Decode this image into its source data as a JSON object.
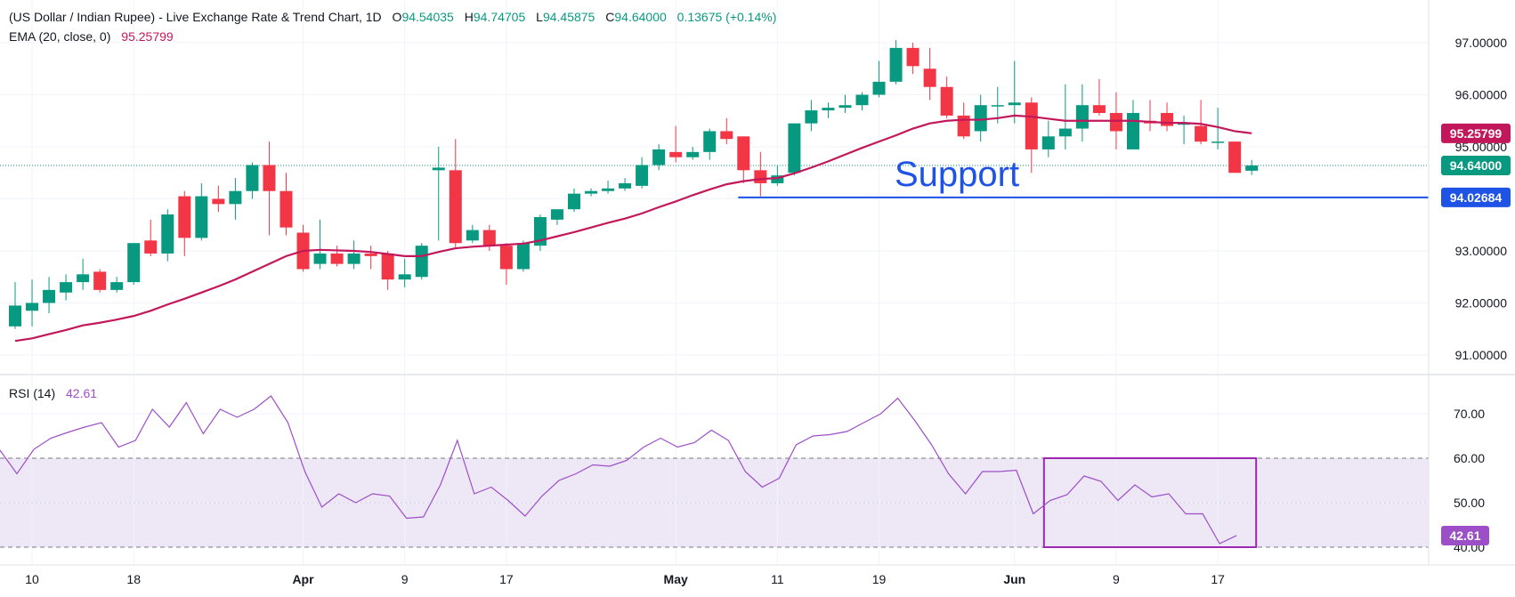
{
  "legend": {
    "title": "(US Dollar / Indian Rupee) - Live Exchange Rate & Trend Chart, 1D",
    "open_label": "O",
    "open": "94.54035",
    "high_label": "H",
    "high": "94.74705",
    "low_label": "L",
    "low": "94.45875",
    "close_label": "C",
    "close": "94.64000",
    "change": "0.13675 (+0.14%)",
    "ema_label": "EMA (20, close, 0)",
    "ema_value": "95.25799",
    "rsi_label": "RSI (14)",
    "rsi_value": "42.61"
  },
  "annotation": {
    "support_text": "Support"
  },
  "price_tags": {
    "ema": "95.25799",
    "last": "94.64000",
    "support": "94.02684",
    "rsi": "42.61"
  },
  "colors": {
    "up": "#089981",
    "down": "#f23645",
    "ema": "#c2185b",
    "rsi": "#9c4fc7",
    "support": "#1e53e5",
    "box": "#9c27b0",
    "band": "#ede7f6"
  },
  "chart_data": [
    {
      "type": "candlestick",
      "title": "(US Dollar / Indian Rupee) - Live Exchange Rate & Trend Chart, 1D",
      "y_ticks": [
        91,
        92,
        93,
        94,
        95,
        96,
        97
      ],
      "y_tick_labels": [
        "91.00000",
        "92.00000",
        "93.00000",
        "94.00000",
        "95.00000",
        "96.00000",
        "97.00000"
      ],
      "ylim": [
        90.55,
        97.1
      ],
      "x_tick_labels": [
        "10",
        "18",
        "Apr",
        "9",
        "17",
        "May",
        "11",
        "19",
        "Jun",
        "9",
        "17"
      ],
      "x_tick_index": [
        1,
        7,
        17,
        23,
        29,
        39,
        45,
        51,
        59,
        65,
        71
      ],
      "candles": [
        {
          "o": 91.55,
          "h": 92.4,
          "l": 91.5,
          "c": 91.95
        },
        {
          "o": 91.85,
          "h": 92.45,
          "l": 91.55,
          "c": 92.0
        },
        {
          "o": 92.0,
          "h": 92.5,
          "l": 91.8,
          "c": 92.25
        },
        {
          "o": 92.2,
          "h": 92.55,
          "l": 92.05,
          "c": 92.4
        },
        {
          "o": 92.4,
          "h": 92.85,
          "l": 92.25,
          "c": 92.55
        },
        {
          "o": 92.6,
          "h": 92.65,
          "l": 92.2,
          "c": 92.25
        },
        {
          "o": 92.25,
          "h": 92.5,
          "l": 92.2,
          "c": 92.4
        },
        {
          "o": 92.4,
          "h": 93.15,
          "l": 92.35,
          "c": 93.15
        },
        {
          "o": 93.2,
          "h": 93.6,
          "l": 92.9,
          "c": 92.95
        },
        {
          "o": 92.95,
          "h": 93.8,
          "l": 92.8,
          "c": 93.7
        },
        {
          "o": 94.05,
          "h": 94.15,
          "l": 92.9,
          "c": 93.25
        },
        {
          "o": 93.25,
          "h": 94.3,
          "l": 93.2,
          "c": 94.05
        },
        {
          "o": 94.0,
          "h": 94.25,
          "l": 93.75,
          "c": 93.9
        },
        {
          "o": 93.9,
          "h": 94.4,
          "l": 93.6,
          "c": 94.15
        },
        {
          "o": 94.15,
          "h": 94.7,
          "l": 94.0,
          "c": 94.65
        },
        {
          "o": 94.65,
          "h": 95.1,
          "l": 93.3,
          "c": 94.15
        },
        {
          "o": 94.15,
          "h": 94.5,
          "l": 93.3,
          "c": 93.45
        },
        {
          "o": 93.35,
          "h": 93.5,
          "l": 92.6,
          "c": 92.65
        },
        {
          "o": 92.75,
          "h": 93.6,
          "l": 92.65,
          "c": 92.95
        },
        {
          "o": 92.95,
          "h": 93.1,
          "l": 92.7,
          "c": 92.75
        },
        {
          "o": 92.75,
          "h": 93.2,
          "l": 92.65,
          "c": 92.95
        },
        {
          "o": 92.95,
          "h": 93.1,
          "l": 92.65,
          "c": 92.9
        },
        {
          "o": 92.95,
          "h": 93.0,
          "l": 92.25,
          "c": 92.45
        },
        {
          "o": 92.45,
          "h": 92.85,
          "l": 92.3,
          "c": 92.55
        },
        {
          "o": 92.5,
          "h": 93.15,
          "l": 92.45,
          "c": 93.1
        },
        {
          "o": 94.55,
          "h": 95.0,
          "l": 93.2,
          "c": 94.6
        },
        {
          "o": 94.55,
          "h": 95.15,
          "l": 93.05,
          "c": 93.15
        },
        {
          "o": 93.2,
          "h": 93.5,
          "l": 93.15,
          "c": 93.4
        },
        {
          "o": 93.4,
          "h": 93.5,
          "l": 93.0,
          "c": 93.1
        },
        {
          "o": 93.1,
          "h": 93.15,
          "l": 92.35,
          "c": 92.65
        },
        {
          "o": 92.65,
          "h": 93.2,
          "l": 92.6,
          "c": 93.15
        },
        {
          "o": 93.1,
          "h": 93.7,
          "l": 93.0,
          "c": 93.65
        },
        {
          "o": 93.6,
          "h": 93.8,
          "l": 93.5,
          "c": 93.8
        },
        {
          "o": 93.8,
          "h": 94.2,
          "l": 93.75,
          "c": 94.1
        },
        {
          "o": 94.1,
          "h": 94.2,
          "l": 94.05,
          "c": 94.15
        },
        {
          "o": 94.15,
          "h": 94.35,
          "l": 94.1,
          "c": 94.2
        },
        {
          "o": 94.2,
          "h": 94.4,
          "l": 94.15,
          "c": 94.3
        },
        {
          "o": 94.25,
          "h": 94.8,
          "l": 94.2,
          "c": 94.65
        },
        {
          "o": 94.65,
          "h": 95.05,
          "l": 94.55,
          "c": 94.95
        },
        {
          "o": 94.9,
          "h": 95.4,
          "l": 94.7,
          "c": 94.8
        },
        {
          "o": 94.8,
          "h": 95.0,
          "l": 94.75,
          "c": 94.9
        },
        {
          "o": 94.9,
          "h": 95.35,
          "l": 94.75,
          "c": 95.3
        },
        {
          "o": 95.3,
          "h": 95.55,
          "l": 95.05,
          "c": 95.15
        },
        {
          "o": 95.2,
          "h": 95.2,
          "l": 94.3,
          "c": 94.55
        },
        {
          "o": 94.55,
          "h": 94.9,
          "l": 94.05,
          "c": 94.3
        },
        {
          "o": 94.3,
          "h": 94.65,
          "l": 94.25,
          "c": 94.45
        },
        {
          "o": 94.5,
          "h": 95.45,
          "l": 94.45,
          "c": 95.45
        },
        {
          "o": 95.45,
          "h": 95.9,
          "l": 95.3,
          "c": 95.7
        },
        {
          "o": 95.7,
          "h": 95.85,
          "l": 95.55,
          "c": 95.75
        },
        {
          "o": 95.75,
          "h": 96.0,
          "l": 95.65,
          "c": 95.8
        },
        {
          "o": 95.8,
          "h": 96.05,
          "l": 95.7,
          "c": 96.0
        },
        {
          "o": 96.0,
          "h": 96.65,
          "l": 95.95,
          "c": 96.25
        },
        {
          "o": 96.25,
          "h": 97.05,
          "l": 96.2,
          "c": 96.9
        },
        {
          "o": 96.9,
          "h": 97.0,
          "l": 96.4,
          "c": 96.55
        },
        {
          "o": 96.5,
          "h": 96.9,
          "l": 95.9,
          "c": 96.15
        },
        {
          "o": 96.15,
          "h": 96.35,
          "l": 95.55,
          "c": 95.6
        },
        {
          "o": 95.6,
          "h": 95.85,
          "l": 95.15,
          "c": 95.2
        },
        {
          "o": 95.3,
          "h": 96.0,
          "l": 95.1,
          "c": 95.8
        },
        {
          "o": 95.8,
          "h": 96.15,
          "l": 95.45,
          "c": 95.8
        },
        {
          "o": 95.8,
          "h": 96.65,
          "l": 95.45,
          "c": 95.85
        },
        {
          "o": 95.85,
          "h": 95.95,
          "l": 94.5,
          "c": 94.95
        },
        {
          "o": 94.95,
          "h": 95.5,
          "l": 94.8,
          "c": 95.2
        },
        {
          "o": 95.2,
          "h": 96.2,
          "l": 94.95,
          "c": 95.35
        },
        {
          "o": 95.35,
          "h": 96.2,
          "l": 95.1,
          "c": 95.8
        },
        {
          "o": 95.8,
          "h": 96.3,
          "l": 95.6,
          "c": 95.65
        },
        {
          "o": 95.65,
          "h": 96.05,
          "l": 94.95,
          "c": 95.3
        },
        {
          "o": 94.95,
          "h": 95.9,
          "l": 94.95,
          "c": 95.65
        },
        {
          "o": 95.5,
          "h": 95.9,
          "l": 95.3,
          "c": 95.45
        },
        {
          "o": 95.65,
          "h": 95.85,
          "l": 95.3,
          "c": 95.4
        },
        {
          "o": 95.45,
          "h": 95.6,
          "l": 95.05,
          "c": 95.45
        },
        {
          "o": 95.4,
          "h": 95.9,
          "l": 95.05,
          "c": 95.1
        },
        {
          "o": 95.1,
          "h": 95.75,
          "l": 94.95,
          "c": 95.1
        },
        {
          "o": 95.1,
          "h": 95.1,
          "l": 94.5,
          "c": 94.5
        },
        {
          "o": 94.54035,
          "h": 94.74705,
          "l": 94.45875,
          "c": 94.64
        }
      ],
      "ema": [
        91.27,
        91.32,
        91.4,
        91.48,
        91.57,
        91.62,
        91.68,
        91.75,
        91.85,
        91.97,
        92.08,
        92.2,
        92.32,
        92.45,
        92.6,
        92.75,
        92.9,
        93.0,
        93.02,
        93.01,
        93.0,
        92.98,
        92.94,
        92.9,
        92.9,
        92.98,
        93.05,
        93.08,
        93.1,
        93.12,
        93.14,
        93.2,
        93.28,
        93.36,
        93.45,
        93.54,
        93.62,
        93.72,
        93.84,
        93.95,
        94.07,
        94.18,
        94.28,
        94.34,
        94.38,
        94.4,
        94.49,
        94.6,
        94.72,
        94.85,
        94.98,
        95.1,
        95.22,
        95.35,
        95.45,
        95.5,
        95.52,
        95.52,
        95.55,
        95.6,
        95.58,
        95.54,
        95.5,
        95.5,
        95.5,
        95.5,
        95.5,
        95.48,
        95.46,
        95.46,
        95.44,
        95.38,
        95.3,
        95.26
      ],
      "annotations": [
        {
          "type": "horizontal_line",
          "value": 94.02684,
          "label": "94.02684",
          "from_index": 43
        },
        {
          "type": "text",
          "text": "Support"
        }
      ],
      "price_labels": [
        {
          "value": 95.25799,
          "label": "95.25799",
          "series": "EMA (20, close, 0)"
        },
        {
          "value": 94.64,
          "label": "94.64000",
          "series": "close"
        },
        {
          "value": 94.02684,
          "label": "94.02684",
          "series": "support"
        }
      ]
    },
    {
      "type": "line",
      "title": "RSI (14)",
      "y_ticks": [
        40,
        50,
        60,
        70
      ],
      "y_tick_labels": [
        "40.00",
        "50.00",
        "60.00",
        "70.00"
      ],
      "ylim": [
        35.5,
        75.5
      ],
      "band": [
        40,
        60
      ],
      "x_tick_labels": [
        "10",
        "18",
        "Apr",
        "9",
        "17",
        "May",
        "11",
        "19",
        "Jun",
        "9",
        "17"
      ],
      "series": [
        {
          "values": [
            61.8,
            56.5,
            62.0,
            64.5,
            65.8,
            67.0,
            68.0,
            62.5,
            64.0,
            71.0,
            67.0,
            72.5,
            65.5,
            71.0,
            69.2,
            71.0,
            74.0,
            68.0,
            57.0,
            49.0,
            52.0,
            50.0,
            52.0,
            51.5,
            46.5,
            46.8,
            54.0,
            64.0,
            52.0,
            53.5,
            50.5,
            47.0,
            51.5,
            55.0,
            56.5,
            58.5,
            58.2,
            59.5,
            62.5,
            64.5,
            62.5,
            63.5,
            66.3,
            64.0,
            57.0,
            53.5,
            55.5,
            63.0,
            65.0,
            65.3,
            66.0,
            68.0,
            70.0,
            73.5,
            68.5,
            63.0,
            56.5,
            52.0,
            57.0,
            57.0,
            57.3,
            47.5,
            50.5,
            51.8,
            56.0,
            54.8,
            50.5,
            54.0,
            51.3,
            52.0,
            47.5,
            47.5,
            40.8,
            42.61
          ]
        }
      ],
      "annotations": [
        {
          "type": "rectangle",
          "x_from_index": 61,
          "x_to_index": 73,
          "y_from": 40,
          "y_to": 60
        }
      ],
      "price_labels": [
        {
          "value": 42.61,
          "label": "42.61"
        }
      ]
    }
  ]
}
